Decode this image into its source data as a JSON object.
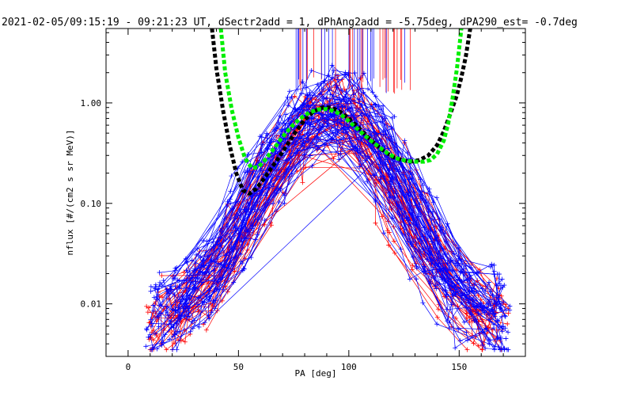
{
  "chart_data": {
    "type": "line",
    "title": "2021-02-05/09:15:19 - 09:21:23 UT, dSectr2add = 1, dPhAng2add = -5.75deg, dPA290_est=  -0.7deg",
    "xlabel": "PA [deg]",
    "ylabel": "nflux [#/(cm2 s sr MeV)]",
    "xlim": [
      -10,
      180
    ],
    "ylim": [
      0.003,
      5.5
    ],
    "yscale": "log",
    "xticks": [
      0,
      50,
      100,
      150
    ],
    "xtick_labels": [
      "0",
      "50",
      "100",
      "150"
    ],
    "yticks": [
      0.01,
      0.1,
      1.0
    ],
    "ytick_labels": [
      "0.01",
      "0.10",
      "1.00"
    ],
    "grid": false,
    "colors": {
      "red_traces": "#ff0000",
      "blue_traces": "#0000ff",
      "black_fit": "#000000",
      "green_fit": "#00ee00"
    },
    "series": [
      {
        "color": "#000000",
        "style": "thick-dashed",
        "x": [
          38,
          40,
          43,
          46,
          49,
          52,
          55,
          58,
          61,
          64,
          68,
          72,
          76,
          80,
          84,
          88,
          92,
          96,
          100,
          104,
          108,
          112,
          116,
          120,
          124,
          128,
          132,
          136,
          140,
          143,
          146,
          149,
          151,
          153,
          155
        ],
        "y": [
          5.5,
          2.2,
          0.85,
          0.38,
          0.2,
          0.135,
          0.125,
          0.14,
          0.17,
          0.21,
          0.28,
          0.38,
          0.52,
          0.68,
          0.82,
          0.9,
          0.9,
          0.82,
          0.7,
          0.58,
          0.47,
          0.39,
          0.33,
          0.29,
          0.27,
          0.26,
          0.27,
          0.3,
          0.38,
          0.52,
          0.78,
          1.2,
          1.8,
          2.9,
          5.5
        ]
      },
      {
        "color": "#00ee00",
        "style": "thick-dashed",
        "x": [
          42,
          44,
          47,
          50,
          53,
          56,
          59,
          62,
          66,
          70,
          74,
          78,
          82,
          86,
          90,
          94,
          98,
          102,
          106,
          110,
          114,
          118,
          122,
          126,
          130,
          134,
          137,
          140,
          143,
          145,
          147,
          149,
          151
        ],
        "y": [
          5.5,
          2.0,
          0.85,
          0.45,
          0.28,
          0.225,
          0.23,
          0.27,
          0.35,
          0.46,
          0.58,
          0.7,
          0.8,
          0.86,
          0.87,
          0.82,
          0.72,
          0.6,
          0.5,
          0.42,
          0.36,
          0.31,
          0.28,
          0.265,
          0.26,
          0.26,
          0.27,
          0.31,
          0.42,
          0.62,
          1.1,
          2.2,
          5.5
        ]
      }
    ],
    "trace_bundles": [
      {
        "color": "#ff0000",
        "note": "many individual spectra",
        "x": [
          10,
          20,
          30,
          40,
          50,
          60,
          70,
          80,
          90,
          100,
          110,
          120,
          130,
          140,
          150,
          160
        ],
        "y_typical": [
          0.006,
          0.008,
          0.012,
          0.02,
          0.05,
          0.12,
          0.3,
          0.6,
          0.8,
          0.6,
          0.3,
          0.12,
          0.05,
          0.02,
          0.01,
          0.007
        ]
      },
      {
        "color": "#0000ff",
        "note": "many individual spectra",
        "x": [
          15,
          25,
          35,
          45,
          55,
          65,
          75,
          85,
          95,
          105,
          115,
          125,
          135,
          145,
          155,
          165,
          170
        ],
        "y_typical": [
          0.007,
          0.01,
          0.015,
          0.03,
          0.1,
          0.25,
          0.5,
          0.8,
          0.9,
          0.7,
          0.35,
          0.12,
          0.04,
          0.015,
          0.01,
          0.008,
          0.007
        ]
      }
    ]
  }
}
